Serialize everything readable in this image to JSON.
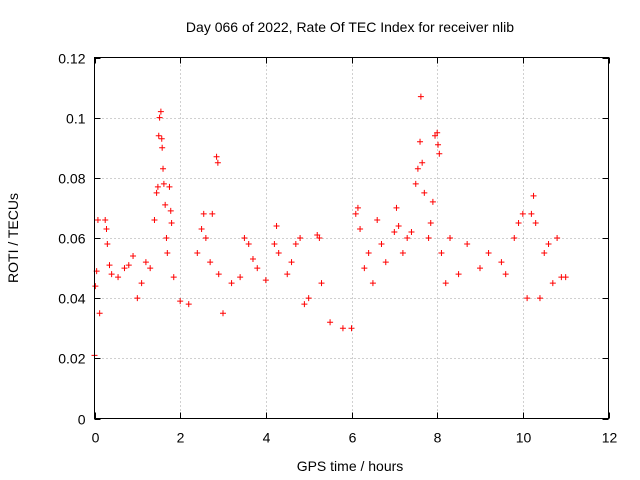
{
  "chart_data": {
    "type": "scatter",
    "title": "Day 066 of 2022, Rate Of TEC Index for receiver nlib",
    "xlabel": "GPS time / hours",
    "ylabel": "ROTI / TECUs",
    "xlim": [
      0,
      12
    ],
    "ylim": [
      0,
      0.12
    ],
    "xticks": [
      0,
      2,
      4,
      6,
      8,
      10,
      12
    ],
    "xtick_labels": [
      "0",
      "2",
      "4",
      "6",
      "8",
      "10",
      "12"
    ],
    "yticks": [
      0,
      0.02,
      0.04,
      0.06,
      0.08,
      0.1,
      0.12
    ],
    "ytick_labels": [
      "0",
      "0.02",
      "0.04",
      "0.06",
      "0.08",
      "0.1",
      "0.12"
    ],
    "grid": true,
    "marker": "+",
    "color": "#ff0000",
    "x_data_extent": [
      0,
      11.05
    ],
    "series": [
      {
        "name": "ROTI",
        "points": [
          [
            0.0,
            0.021
          ],
          [
            0.02,
            0.044
          ],
          [
            0.05,
            0.049
          ],
          [
            0.08,
            0.066
          ],
          [
            0.12,
            0.035
          ],
          [
            0.25,
            0.066
          ],
          [
            0.28,
            0.063
          ],
          [
            0.3,
            0.058
          ],
          [
            0.35,
            0.051
          ],
          [
            0.4,
            0.048
          ],
          [
            0.55,
            0.047
          ],
          [
            0.7,
            0.05
          ],
          [
            0.8,
            0.051
          ],
          [
            0.9,
            0.054
          ],
          [
            1.0,
            0.04
          ],
          [
            1.1,
            0.045
          ],
          [
            1.2,
            0.052
          ],
          [
            1.3,
            0.05
          ],
          [
            1.4,
            0.066
          ],
          [
            1.45,
            0.075
          ],
          [
            1.48,
            0.077
          ],
          [
            1.5,
            0.094
          ],
          [
            1.52,
            0.1
          ],
          [
            1.55,
            0.102
          ],
          [
            1.57,
            0.093
          ],
          [
            1.58,
            0.09
          ],
          [
            1.6,
            0.083
          ],
          [
            1.62,
            0.078
          ],
          [
            1.65,
            0.071
          ],
          [
            1.68,
            0.06
          ],
          [
            1.7,
            0.055
          ],
          [
            1.75,
            0.077
          ],
          [
            1.78,
            0.069
          ],
          [
            1.8,
            0.065
          ],
          [
            1.85,
            0.047
          ],
          [
            2.0,
            0.039
          ],
          [
            2.2,
            0.038
          ],
          [
            2.4,
            0.055
          ],
          [
            2.5,
            0.063
          ],
          [
            2.55,
            0.068
          ],
          [
            2.6,
            0.06
          ],
          [
            2.7,
            0.052
          ],
          [
            2.75,
            0.068
          ],
          [
            2.85,
            0.087
          ],
          [
            2.88,
            0.085
          ],
          [
            2.9,
            0.048
          ],
          [
            3.0,
            0.035
          ],
          [
            3.2,
            0.045
          ],
          [
            3.4,
            0.047
          ],
          [
            3.5,
            0.06
          ],
          [
            3.6,
            0.058
          ],
          [
            3.7,
            0.053
          ],
          [
            3.8,
            0.05
          ],
          [
            4.0,
            0.046
          ],
          [
            4.2,
            0.058
          ],
          [
            4.25,
            0.064
          ],
          [
            4.3,
            0.055
          ],
          [
            4.5,
            0.048
          ],
          [
            4.6,
            0.052
          ],
          [
            4.7,
            0.058
          ],
          [
            4.8,
            0.06
          ],
          [
            4.9,
            0.038
          ],
          [
            5.0,
            0.04
          ],
          [
            5.2,
            0.061
          ],
          [
            5.25,
            0.06
          ],
          [
            5.3,
            0.045
          ],
          [
            5.5,
            0.032
          ],
          [
            5.8,
            0.03
          ],
          [
            6.0,
            0.03
          ],
          [
            6.1,
            0.068
          ],
          [
            6.15,
            0.07
          ],
          [
            6.2,
            0.063
          ],
          [
            6.3,
            0.05
          ],
          [
            6.4,
            0.055
          ],
          [
            6.5,
            0.045
          ],
          [
            6.6,
            0.066
          ],
          [
            6.7,
            0.058
          ],
          [
            6.8,
            0.052
          ],
          [
            7.0,
            0.062
          ],
          [
            7.05,
            0.07
          ],
          [
            7.1,
            0.064
          ],
          [
            7.2,
            0.055
          ],
          [
            7.3,
            0.06
          ],
          [
            7.4,
            0.062
          ],
          [
            7.5,
            0.078
          ],
          [
            7.55,
            0.083
          ],
          [
            7.6,
            0.092
          ],
          [
            7.62,
            0.107
          ],
          [
            7.65,
            0.085
          ],
          [
            7.7,
            0.075
          ],
          [
            7.8,
            0.06
          ],
          [
            7.85,
            0.065
          ],
          [
            7.9,
            0.072
          ],
          [
            7.95,
            0.094
          ],
          [
            8.0,
            0.095
          ],
          [
            8.02,
            0.091
          ],
          [
            8.05,
            0.088
          ],
          [
            8.1,
            0.055
          ],
          [
            8.2,
            0.045
          ],
          [
            8.3,
            0.06
          ],
          [
            8.5,
            0.048
          ],
          [
            8.7,
            0.058
          ],
          [
            9.0,
            0.05
          ],
          [
            9.2,
            0.055
          ],
          [
            9.5,
            0.052
          ],
          [
            9.6,
            0.048
          ],
          [
            9.8,
            0.06
          ],
          [
            9.9,
            0.065
          ],
          [
            10.0,
            0.068
          ],
          [
            10.1,
            0.04
          ],
          [
            10.2,
            0.068
          ],
          [
            10.25,
            0.074
          ],
          [
            10.3,
            0.065
          ],
          [
            10.4,
            0.04
          ],
          [
            10.5,
            0.055
          ],
          [
            10.6,
            0.058
          ],
          [
            10.7,
            0.045
          ],
          [
            10.8,
            0.06
          ],
          [
            10.9,
            0.047
          ],
          [
            11.0,
            0.047
          ]
        ]
      }
    ]
  }
}
